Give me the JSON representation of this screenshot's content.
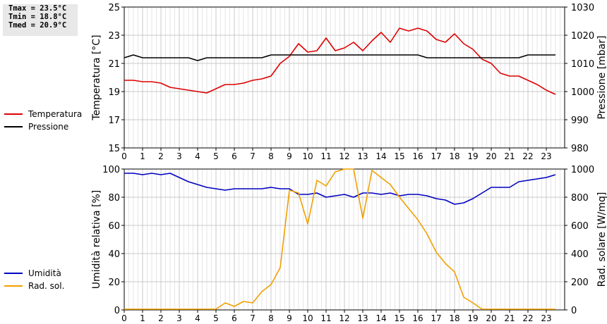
{
  "stats": {
    "tmax": "Tmax = 23.5°C",
    "tmin": "Tmin = 18.8°C",
    "tmed": "Tmed = 20.9°C"
  },
  "legend_top": [
    {
      "label": "Temperatura",
      "color": "#dd0000"
    },
    {
      "label": "Pressione",
      "color": "#000000"
    }
  ],
  "legend_bottom": [
    {
      "label": "Umidità",
      "color": "#0000c0"
    },
    {
      "label": "Rad. sol.",
      "color": "#f0a000"
    }
  ],
  "chart_data": [
    {
      "type": "line",
      "xlim": [
        0,
        24
      ],
      "xticks": [
        0,
        1,
        2,
        3,
        4,
        5,
        6,
        7,
        8,
        9,
        10,
        11,
        12,
        13,
        14,
        15,
        16,
        17,
        18,
        19,
        20,
        21,
        22,
        23
      ],
      "ylabel": "Temperatura [°C]",
      "ylim": [
        15,
        25
      ],
      "yticks": [
        15,
        17,
        19,
        21,
        23,
        25
      ],
      "y2label": "Pressione [mbar]",
      "y2lim": [
        980,
        1030
      ],
      "y2ticks": [
        980,
        990,
        1000,
        1010,
        1020,
        1030
      ],
      "grid": true,
      "series": [
        {
          "name": "Temperatura",
          "axis": "y",
          "color": "#dd0000",
          "x": [
            0,
            0.5,
            1,
            1.5,
            2,
            2.5,
            3,
            3.5,
            4,
            4.5,
            5,
            5.5,
            6,
            6.5,
            7,
            7.5,
            8,
            8.5,
            9,
            9.5,
            10,
            10.5,
            11,
            11.5,
            12,
            12.5,
            13,
            13.5,
            14,
            14.5,
            15,
            15.5,
            16,
            16.5,
            17,
            17.5,
            18,
            18.5,
            19,
            19.5,
            20,
            20.5,
            21,
            21.5,
            22,
            22.5,
            23,
            23.5
          ],
          "values": [
            19.8,
            19.8,
            19.7,
            19.7,
            19.6,
            19.3,
            19.2,
            19.1,
            19.0,
            18.9,
            19.2,
            19.5,
            19.5,
            19.6,
            19.8,
            19.9,
            20.1,
            21.0,
            21.5,
            22.4,
            21.8,
            21.9,
            22.8,
            21.9,
            22.1,
            22.5,
            21.9,
            22.6,
            23.2,
            22.5,
            23.5,
            23.3,
            23.5,
            23.3,
            22.7,
            22.5,
            23.1,
            22.4,
            22.0,
            21.3,
            21.0,
            20.3,
            20.1,
            20.1,
            19.8,
            19.5,
            19.1,
            18.8
          ]
        },
        {
          "name": "Pressione",
          "axis": "y2",
          "color": "#000000",
          "x": [
            0,
            0.5,
            1,
            1.5,
            2,
            2.5,
            3,
            3.5,
            4,
            4.5,
            5,
            5.5,
            6,
            6.5,
            7,
            7.5,
            8,
            8.5,
            9,
            9.5,
            10,
            10.5,
            11,
            11.5,
            12,
            12.5,
            13,
            13.5,
            14,
            14.5,
            15,
            15.5,
            16,
            16.5,
            17,
            17.5,
            18,
            18.5,
            19,
            19.5,
            20,
            20.5,
            21,
            21.5,
            22,
            22.5,
            23,
            23.5
          ],
          "values": [
            1012,
            1013,
            1012,
            1012,
            1012,
            1012,
            1012,
            1012,
            1011,
            1012,
            1012,
            1012,
            1012,
            1012,
            1012,
            1012,
            1013,
            1013,
            1013,
            1013,
            1013,
            1013,
            1013,
            1013,
            1013,
            1013,
            1013,
            1013,
            1013,
            1013,
            1013,
            1013,
            1013,
            1012,
            1012,
            1012,
            1012,
            1012,
            1012,
            1012,
            1012,
            1012,
            1012,
            1012,
            1013,
            1013,
            1013,
            1013
          ]
        }
      ]
    },
    {
      "type": "line",
      "xlim": [
        0,
        24
      ],
      "xticks": [
        0,
        1,
        2,
        3,
        4,
        5,
        6,
        7,
        8,
        9,
        10,
        11,
        12,
        13,
        14,
        15,
        16,
        17,
        18,
        19,
        20,
        21,
        22,
        23
      ],
      "ylabel": "Umidità relativa [%]",
      "ylim": [
        0,
        100
      ],
      "yticks": [
        0,
        20,
        40,
        60,
        80,
        100
      ],
      "y2label": "Rad. solare [W/mq]",
      "y2lim": [
        0,
        1000
      ],
      "y2ticks": [
        0,
        200,
        400,
        600,
        800,
        1000
      ],
      "grid": true,
      "series": [
        {
          "name": "Umidità",
          "axis": "y",
          "color": "#0000c0",
          "x": [
            0,
            0.5,
            1,
            1.5,
            2,
            2.5,
            3,
            3.5,
            4,
            4.5,
            5,
            5.5,
            6,
            6.5,
            7,
            7.5,
            8,
            8.5,
            9,
            9.5,
            10,
            10.5,
            11,
            11.5,
            12,
            12.5,
            13,
            13.5,
            14,
            14.5,
            15,
            15.5,
            16,
            16.5,
            17,
            17.5,
            18,
            18.5,
            19,
            19.5,
            20,
            20.5,
            21,
            21.5,
            22,
            22.5,
            23,
            23.5
          ],
          "values": [
            97,
            97,
            96,
            97,
            96,
            97,
            94,
            91,
            89,
            87,
            86,
            85,
            86,
            86,
            86,
            86,
            87,
            86,
            86,
            82,
            82,
            83,
            80,
            81,
            82,
            80,
            83,
            83,
            82,
            83,
            81,
            82,
            82,
            81,
            79,
            78,
            75,
            76,
            79,
            83,
            87,
            87,
            87,
            91,
            92,
            93,
            94,
            96
          ]
        },
        {
          "name": "Rad. sol.",
          "axis": "y2",
          "color": "#f0a000",
          "x": [
            0,
            0.5,
            1,
            1.5,
            2,
            2.5,
            3,
            3.5,
            4,
            4.5,
            5,
            5.5,
            6,
            6.5,
            7,
            7.5,
            8,
            8.5,
            9,
            9.5,
            10,
            10.5,
            11,
            11.5,
            12,
            12.5,
            13,
            13.5,
            14,
            14.5,
            15,
            15.5,
            16,
            16.5,
            17,
            17.5,
            18,
            18.5,
            19,
            19.5,
            20,
            20.5,
            21,
            21.5,
            22,
            22.5,
            23,
            23.5
          ],
          "values": [
            5,
            5,
            5,
            5,
            5,
            5,
            5,
            5,
            5,
            5,
            5,
            50,
            25,
            60,
            50,
            130,
            180,
            300,
            850,
            830,
            610,
            920,
            880,
            980,
            1010,
            1010,
            650,
            990,
            940,
            890,
            800,
            720,
            640,
            540,
            410,
            330,
            270,
            90,
            50,
            5,
            5,
            5,
            5,
            5,
            5,
            5,
            5,
            5
          ]
        }
      ]
    }
  ]
}
